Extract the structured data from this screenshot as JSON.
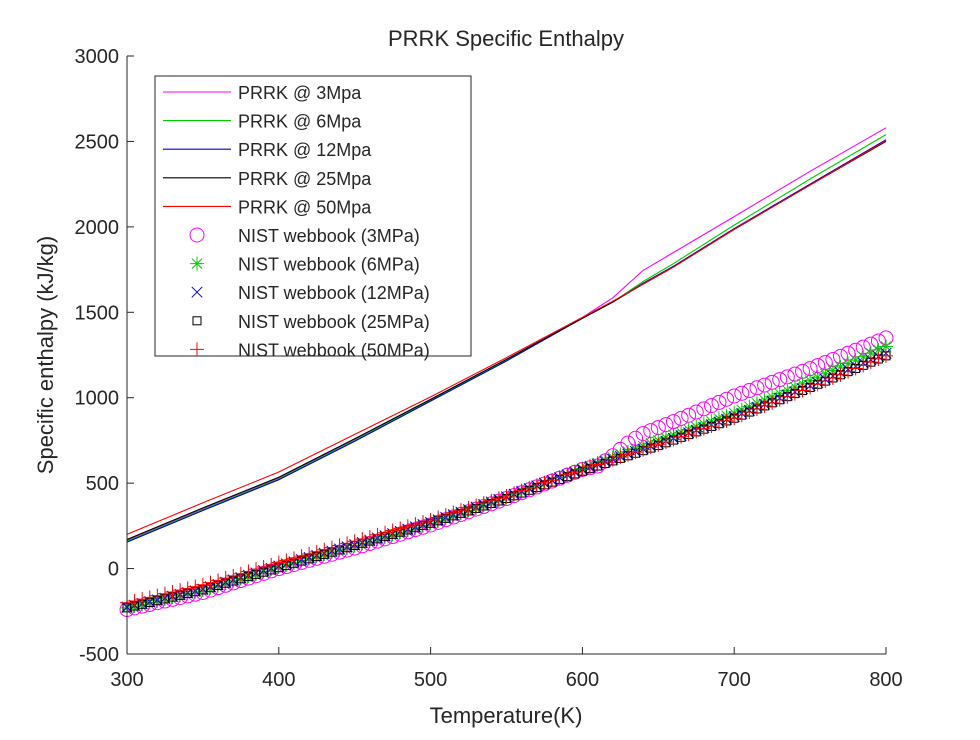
{
  "chart_data": {
    "type": "line",
    "title": "PRRK Specific Enthalpy",
    "xlabel": "Temperature(K)",
    "ylabel": "Specific enthalpy (kJ/kg)",
    "xlim": [
      300,
      800
    ],
    "ylim": [
      -500,
      3000
    ],
    "xticks": [
      "300",
      "400",
      "500",
      "600",
      "700",
      "800"
    ],
    "yticks": [
      "-500",
      "0",
      "500",
      "1000",
      "1500",
      "2000",
      "2500",
      "3000"
    ],
    "grid": false,
    "legend_position": "top-left",
    "line_series": [
      {
        "name": "PRRK @ 3Mpa",
        "color": "#ff00ff",
        "style": "line",
        "x": [
          300,
          350,
          400,
          450,
          500,
          550,
          600,
          620,
          640,
          660,
          700,
          750,
          800
        ],
        "y": [
          165,
          350,
          530,
          755,
          990,
          1225,
          1470,
          1585,
          1745,
          1850,
          2060,
          2325,
          2580
        ]
      },
      {
        "name": "PRRK @ 6Mpa",
        "color": "#00cc00",
        "style": "line",
        "x": [
          300,
          350,
          400,
          450,
          500,
          550,
          600,
          620,
          640,
          660,
          700,
          750,
          800
        ],
        "y": [
          160,
          345,
          525,
          750,
          985,
          1220,
          1465,
          1560,
          1680,
          1785,
          2010,
          2280,
          2540
        ]
      },
      {
        "name": "PRRK @ 12Mpa",
        "color": "#0000cc",
        "style": "line",
        "x": [
          300,
          350,
          400,
          450,
          500,
          550,
          600,
          620,
          640,
          660,
          700,
          750,
          800
        ],
        "y": [
          155,
          340,
          520,
          745,
          980,
          1215,
          1465,
          1560,
          1670,
          1770,
          1990,
          2250,
          2510
        ]
      },
      {
        "name": "PRRK @ 25Mpa",
        "color": "#000000",
        "style": "line",
        "x": [
          300,
          350,
          400,
          450,
          500,
          550,
          600,
          620,
          640,
          660,
          700,
          750,
          800
        ],
        "y": [
          170,
          355,
          535,
          760,
          990,
          1225,
          1465,
          1560,
          1665,
          1765,
          1985,
          2245,
          2500
        ]
      },
      {
        "name": "PRRK @ 50Mpa",
        "color": "#ff0000",
        "style": "line",
        "x": [
          300,
          350,
          400,
          450,
          500,
          550,
          600,
          620,
          640,
          660,
          700,
          750,
          800
        ],
        "y": [
          200,
          385,
          565,
          785,
          1005,
          1235,
          1470,
          1565,
          1665,
          1765,
          1985,
          2245,
          2505
        ]
      }
    ],
    "marker_series": [
      {
        "name": "NIST webbook (3MPa)",
        "color": "#ff00ff",
        "marker": "circle",
        "x": [
          300,
          350,
          400,
          450,
          500,
          550,
          600,
          610,
          620,
          630,
          640,
          660,
          700,
          750,
          800
        ],
        "y": [
          -240,
          -140,
          0,
          120,
          255,
          410,
          580,
          600,
          660,
          735,
          790,
          860,
          1010,
          1170,
          1350
        ]
      },
      {
        "name": "NIST webbook (6MPa)",
        "color": "#00cc00",
        "marker": "asterisk",
        "x": [
          300,
          350,
          400,
          450,
          500,
          550,
          600,
          650,
          700,
          750,
          800
        ],
        "y": [
          -230,
          -125,
          10,
          135,
          265,
          415,
          585,
          750,
          910,
          1100,
          1300
        ]
      },
      {
        "name": "NIST webbook (12MPa)",
        "color": "#0000cc",
        "marker": "x",
        "x": [
          300,
          350,
          400,
          450,
          500,
          550,
          600,
          650,
          700,
          750,
          800
        ],
        "y": [
          -225,
          -120,
          15,
          140,
          270,
          420,
          580,
          730,
          890,
          1070,
          1260
        ]
      },
      {
        "name": "NIST webbook (25MPa)",
        "color": "#000000",
        "marker": "square",
        "x": [
          300,
          350,
          400,
          450,
          500,
          550,
          600,
          650,
          700,
          750,
          800
        ],
        "y": [
          -230,
          -125,
          5,
          135,
          265,
          410,
          570,
          720,
          880,
          1060,
          1245
        ]
      },
      {
        "name": "NIST webbook (50MPa)",
        "color": "#ff0000",
        "marker": "plus",
        "x": [
          300,
          350,
          400,
          450,
          500,
          550,
          600,
          650,
          700,
          750,
          800
        ],
        "y": [
          -200,
          -95,
          35,
          160,
          285,
          425,
          580,
          725,
          880,
          1060,
          1245
        ]
      }
    ]
  }
}
